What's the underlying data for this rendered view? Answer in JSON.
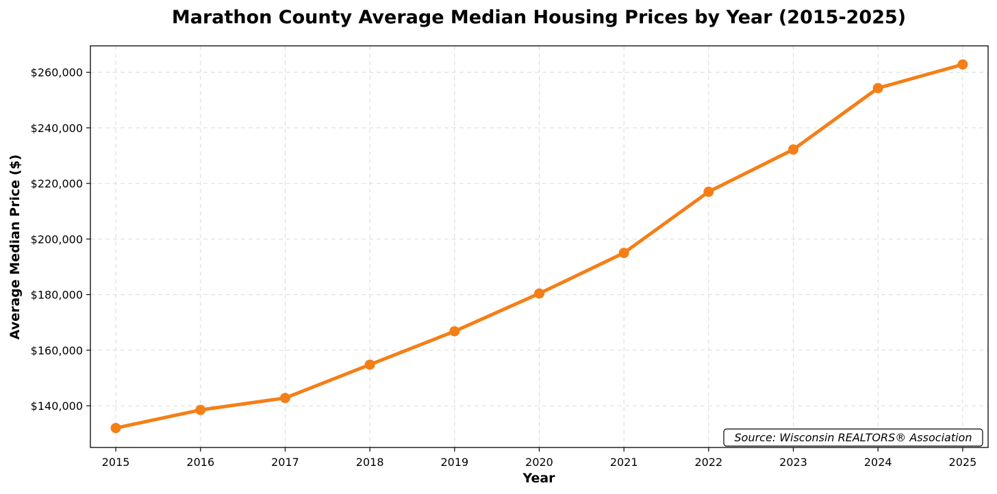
{
  "chart_data": {
    "type": "line",
    "title": "Marathon County Average Median Housing Prices by Year (2015-2025)",
    "xlabel": "Year",
    "ylabel": "Average Median Price ($)",
    "x": [
      2015,
      2016,
      2017,
      2018,
      2019,
      2020,
      2021,
      2022,
      2023,
      2024,
      2025
    ],
    "x_tick_labels": [
      "2015",
      "2016",
      "2017",
      "2018",
      "2019",
      "2020",
      "2021",
      "2022",
      "2023",
      "2024",
      "2025"
    ],
    "series": [
      {
        "values": [
          132000,
          138500,
          142800,
          154800,
          166800,
          180400,
          195000,
          217000,
          232200,
          254300,
          262800
        ],
        "color": "#f47f17"
      }
    ],
    "xlim": [
      2014.7,
      2025.3
    ],
    "ylim": [
      125000,
      269500
    ],
    "y_ticks": [
      140000,
      160000,
      180000,
      200000,
      220000,
      240000,
      260000
    ],
    "y_tick_labels": [
      "$140,000",
      "$160,000",
      "$180,000",
      "$200,000",
      "$220,000",
      "$240,000",
      "$260,000"
    ],
    "grid": true,
    "annotation": "Source: Wisconsin REALTORS® Association"
  }
}
